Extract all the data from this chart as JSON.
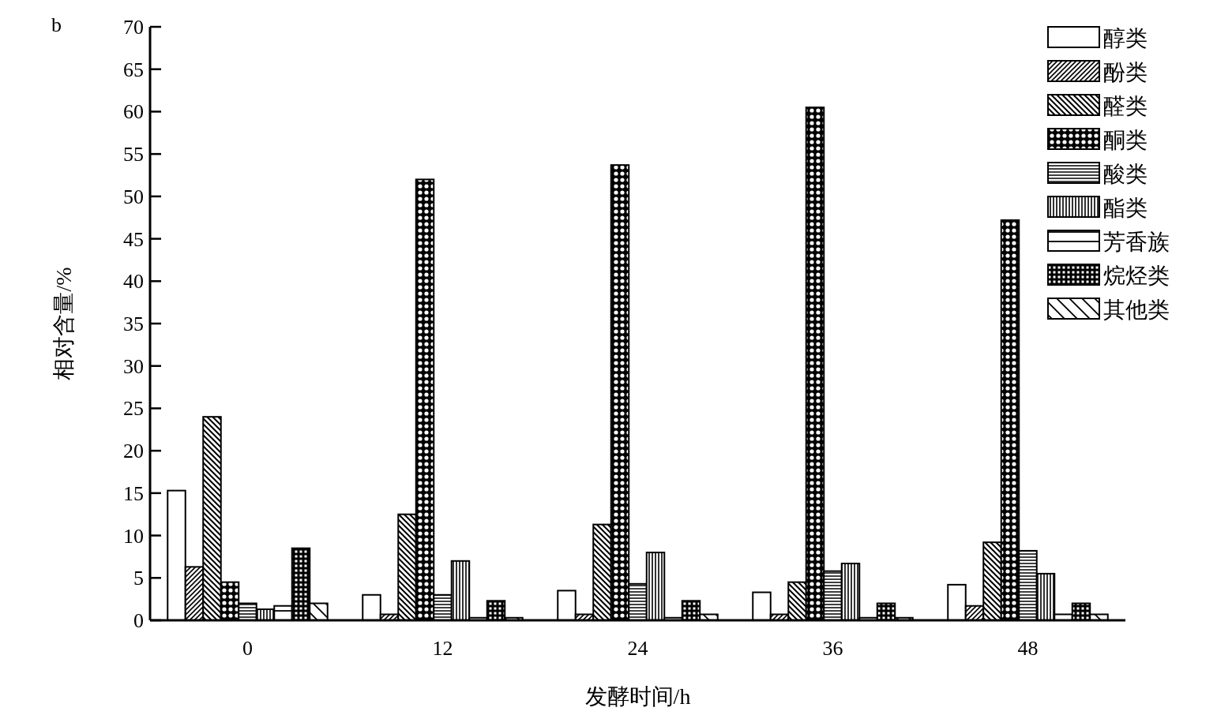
{
  "chart_data": {
    "type": "bar",
    "xlabel": "发酵时间/h",
    "ylabel": "相对含量/%",
    "annotations": [
      "b"
    ],
    "legend": "top right",
    "categories": [
      "0",
      "12",
      "24",
      "36",
      "48"
    ],
    "ylim": [
      0,
      70
    ],
    "yticks": [
      0,
      5,
      10,
      15,
      20,
      25,
      30,
      35,
      40,
      45,
      50,
      55,
      60,
      65,
      70
    ],
    "series": [
      {
        "name": "醇类",
        "color": "#000000",
        "values": [
          15.3,
          3.0,
          3.5,
          3.3,
          4.2
        ]
      },
      {
        "name": "酚类",
        "color": "#000000",
        "values": [
          6.3,
          0.7,
          0.7,
          0.7,
          1.7
        ]
      },
      {
        "name": "醛类",
        "color": "#000000",
        "values": [
          24.0,
          12.5,
          11.3,
          4.5,
          9.2
        ]
      },
      {
        "name": "酮类",
        "color": "#000000",
        "values": [
          4.5,
          52.0,
          53.7,
          60.5,
          47.2
        ]
      },
      {
        "name": "酸类",
        "color": "#000000",
        "values": [
          2.0,
          3.0,
          4.3,
          5.8,
          8.2
        ]
      },
      {
        "name": "酯类",
        "color": "#000000",
        "values": [
          1.3,
          7.0,
          8.0,
          6.7,
          5.5
        ]
      },
      {
        "name": "芳香族",
        "color": "#000000",
        "values": [
          1.7,
          0.3,
          0.3,
          0.3,
          0.7
        ]
      },
      {
        "name": "烷烃类",
        "color": "#000000",
        "values": [
          8.5,
          2.3,
          2.3,
          2.0,
          2.0
        ]
      },
      {
        "name": "其他类",
        "color": "#000000",
        "values": [
          2.0,
          0.3,
          0.7,
          0.3,
          0.7
        ]
      }
    ]
  }
}
